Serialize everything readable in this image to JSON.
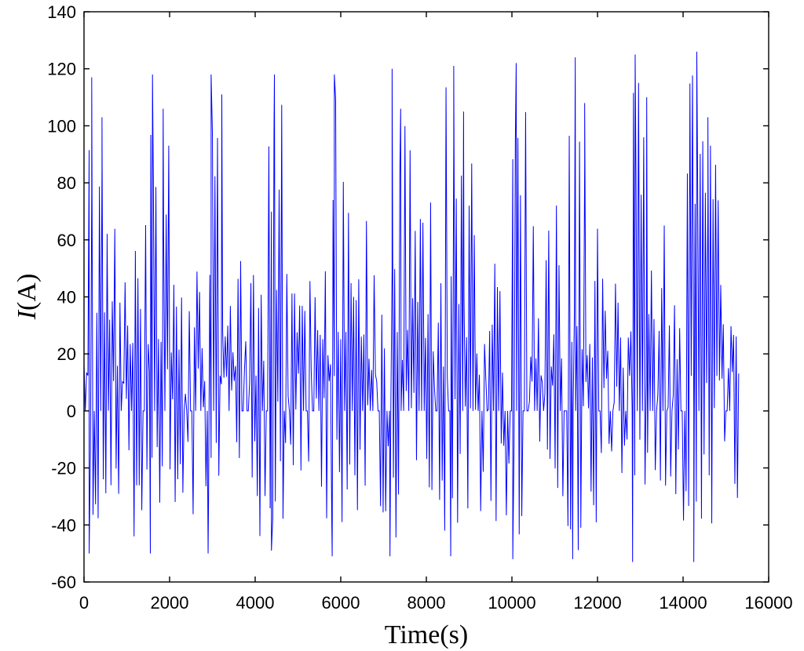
{
  "chart_data": {
    "type": "line",
    "title": "",
    "xlabel": "Time(s)",
    "ylabel_italic": "I",
    "ylabel_rest": "(A)",
    "xlim": [
      0,
      16000
    ],
    "ylim": [
      -60,
      140
    ],
    "xticks": [
      0,
      2000,
      4000,
      6000,
      8000,
      10000,
      12000,
      14000,
      16000
    ],
    "yticks": [
      -60,
      -40,
      -20,
      0,
      20,
      40,
      60,
      80,
      100,
      120,
      140
    ],
    "grid": false,
    "legend": "none",
    "series": [
      {
        "color": "#0000ff",
        "x_start": 0,
        "x_end": 15300,
        "approx_sample_spacing": 60,
        "value_range": [
          -53,
          126
        ],
        "peaks": [
          {
            "x": 180,
            "y": 117
          },
          {
            "x": 420,
            "y": 103
          },
          {
            "x": 1600,
            "y": 118
          },
          {
            "x": 1850,
            "y": 106
          },
          {
            "x": 2970,
            "y": 118
          },
          {
            "x": 3220,
            "y": 111
          },
          {
            "x": 4450,
            "y": 118
          },
          {
            "x": 5850,
            "y": 118
          },
          {
            "x": 7200,
            "y": 120
          },
          {
            "x": 7400,
            "y": 106
          },
          {
            "x": 8640,
            "y": 121
          },
          {
            "x": 8870,
            "y": 105
          },
          {
            "x": 10100,
            "y": 122
          },
          {
            "x": 11480,
            "y": 124
          },
          {
            "x": 11700,
            "y": 108
          },
          {
            "x": 12880,
            "y": 125
          },
          {
            "x": 13150,
            "y": 110
          },
          {
            "x": 14320,
            "y": 126
          },
          {
            "x": 14580,
            "y": 103
          }
        ],
        "troughs": [
          {
            "x": 120,
            "y": -50
          },
          {
            "x": 1550,
            "y": -50
          },
          {
            "x": 2900,
            "y": -50
          },
          {
            "x": 4380,
            "y": -49
          },
          {
            "x": 5800,
            "y": -51
          },
          {
            "x": 7150,
            "y": -51
          },
          {
            "x": 8570,
            "y": -51
          },
          {
            "x": 10020,
            "y": -52
          },
          {
            "x": 11420,
            "y": -52
          },
          {
            "x": 12820,
            "y": -53
          },
          {
            "x": 14250,
            "y": -53
          }
        ]
      }
    ]
  }
}
